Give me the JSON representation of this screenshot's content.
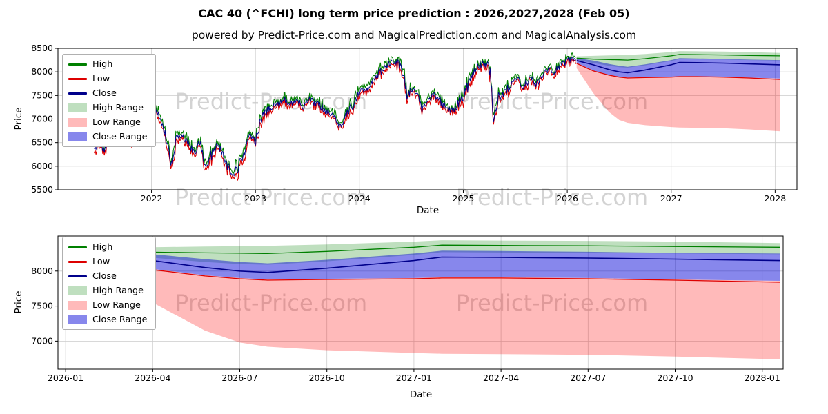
{
  "title": "CAC 40 (^FCHI) long term price prediction : 2026,2027,2028 (Feb 05)",
  "subtitle": "powered by Predict-Price.com and MagicalPrediction.com and MagicalAnalysis.com",
  "watermark": {
    "text": "Predict-Price.com",
    "color": "#c9c9c9"
  },
  "colors": {
    "high_line": "#008000",
    "low_line": "#dd0000",
    "close_line": "#00008b",
    "high_range_fill": "rgba(0,128,0,0.25)",
    "low_range_fill": "rgba(255,0,0,0.27)",
    "close_range_fill": "rgba(0,0,215,0.47)",
    "grid": "#cccccc",
    "spine": "#000000",
    "text": "#000000"
  },
  "legend": {
    "position": "upper left",
    "items": [
      {
        "id": "high",
        "label": "High",
        "type": "line",
        "color": "#008000"
      },
      {
        "id": "low",
        "label": "Low",
        "type": "line",
        "color": "#dd0000"
      },
      {
        "id": "close",
        "label": "Close",
        "type": "line",
        "color": "#00008b"
      },
      {
        "id": "high-range",
        "label": "High Range",
        "type": "patch",
        "color": "rgba(0,128,0,0.25)"
      },
      {
        "id": "low-range",
        "label": "Low Range",
        "type": "patch",
        "color": "rgba(255,0,0,0.27)"
      },
      {
        "id": "close-range",
        "label": "Close Range",
        "type": "patch",
        "color": "rgba(0,0,215,0.47)"
      }
    ]
  },
  "chart_data": [
    {
      "type": "line",
      "name": "historical-prices-with-prediction",
      "xlabel": "Date",
      "ylabel": "Price",
      "grid": true,
      "xlim": [
        2021.1,
        2028.21
      ],
      "ylim": [
        5500,
        8500
      ],
      "yticks": [
        5500,
        6000,
        6500,
        7000,
        7500,
        8000,
        8500
      ],
      "xticks": [
        2022,
        2023,
        2024,
        2025,
        2026,
        2027,
        2028
      ],
      "xtick_labels": [
        "2022",
        "2023",
        "2024",
        "2025",
        "2026",
        "2027",
        "2028"
      ],
      "legend": [
        "High",
        "Low",
        "Close",
        "High Range",
        "Low Range",
        "Close Range"
      ],
      "historical": {
        "x": [
          2021.45,
          2021.5,
          2021.54,
          2021.6,
          2021.67,
          2021.72,
          2021.78,
          2021.85,
          2021.92,
          2022.0,
          2022.04,
          2022.1,
          2022.16,
          2022.19,
          2022.24,
          2022.3,
          2022.36,
          2022.42,
          2022.46,
          2022.52,
          2022.58,
          2022.63,
          2022.68,
          2022.73,
          2022.78,
          2022.82,
          2022.88,
          2022.94,
          2023.0,
          2023.05,
          2023.12,
          2023.2,
          2023.28,
          2023.32,
          2023.4,
          2023.46,
          2023.52,
          2023.6,
          2023.68,
          2023.75,
          2023.8,
          2023.86,
          2023.93,
          2024.0,
          2024.07,
          2024.15,
          2024.23,
          2024.3,
          2024.36,
          2024.42,
          2024.46,
          2024.52,
          2024.58,
          2024.6,
          2024.65,
          2024.72,
          2024.78,
          2024.84,
          2024.9,
          2024.96,
          2025.0,
          2025.06,
          2025.12,
          2025.18,
          2025.24,
          2025.26,
          2025.29,
          2025.33,
          2025.4,
          2025.47,
          2025.53,
          2025.58,
          2025.64,
          2025.7,
          2025.76,
          2025.82,
          2025.87,
          2025.93,
          2026.0,
          2026.09
        ],
        "close": [
          6350,
          6520,
          6330,
          6620,
          6680,
          6550,
          6750,
          6500,
          6850,
          7150,
          7220,
          6950,
          6400,
          6050,
          6580,
          6620,
          6450,
          6280,
          6540,
          6000,
          6250,
          6500,
          6280,
          6000,
          5750,
          5900,
          6250,
          6650,
          6550,
          6980,
          7180,
          7300,
          7430,
          7280,
          7420,
          7250,
          7420,
          7320,
          7180,
          7020,
          6870,
          7000,
          7280,
          7570,
          7640,
          7900,
          8080,
          8180,
          8200,
          7980,
          7500,
          7650,
          7480,
          7180,
          7420,
          7520,
          7380,
          7230,
          7180,
          7350,
          7450,
          7800,
          8030,
          8180,
          8090,
          8000,
          7000,
          7420,
          7600,
          7720,
          7850,
          7680,
          7880,
          7720,
          7950,
          8060,
          7960,
          8120,
          8230,
          8290
        ],
        "noise": {
          "seed": 42,
          "step": 0.008,
          "base": 130,
          "slope_gain": 0.6,
          "max_extra": 150,
          "hl_offset": 12,
          "hl_gain": 0.5
        }
      },
      "prediction": {
        "x": [
          2026.09,
          2026.25,
          2026.4,
          2026.5,
          2026.58,
          2026.75,
          2027.0,
          2027.08,
          2027.25,
          2027.5,
          2027.75,
          2028.05
        ],
        "close": [
          8240,
          8150,
          8050,
          8000,
          7980,
          8040,
          8150,
          8200,
          8195,
          8185,
          8170,
          8150
        ],
        "high": [
          8290,
          8270,
          8260,
          8255,
          8250,
          8280,
          8340,
          8370,
          8365,
          8360,
          8350,
          8340
        ],
        "low": [
          8180,
          8020,
          7930,
          7890,
          7870,
          7880,
          7890,
          7900,
          7900,
          7890,
          7870,
          7840
        ],
        "high_range_top": [
          8330,
          8340,
          8350,
          8355,
          8360,
          8380,
          8420,
          8440,
          8435,
          8430,
          8420,
          8400
        ],
        "high_range_bottom": [
          8250,
          8190,
          8130,
          8100,
          8090,
          8140,
          8230,
          8270,
          8265,
          8260,
          8250,
          8240
        ],
        "close_range_top": [
          8290,
          8240,
          8170,
          8130,
          8110,
          8160,
          8250,
          8290,
          8285,
          8275,
          8260,
          8250
        ],
        "close_range_bottom": [
          8190,
          8030,
          7940,
          7900,
          7880,
          7890,
          7900,
          7910,
          7910,
          7900,
          7880,
          7860
        ],
        "low_range_top": [
          8190,
          8030,
          7940,
          7900,
          7880,
          7890,
          7900,
          7910,
          7910,
          7900,
          7880,
          7860
        ],
        "low_range_bottom": [
          8080,
          7550,
          7150,
          6980,
          6920,
          6870,
          6830,
          6820,
          6815,
          6805,
          6780,
          6740
        ]
      }
    },
    {
      "type": "area",
      "name": "prediction-zoom-2026-2028",
      "xlabel": "Date",
      "ylabel": "Price",
      "grid": true,
      "xlim": [
        2025.978,
        2028.06
      ],
      "ylim": [
        6600,
        8500
      ],
      "yticks": [
        7000,
        7500,
        8000
      ],
      "xticks": [
        2026.0,
        2026.25,
        2026.5,
        2026.75,
        2027.0,
        2027.25,
        2027.5,
        2027.75,
        2028.0
      ],
      "xtick_labels": [
        "2026-01",
        "2026-04",
        "2026-07",
        "2026-10",
        "2027-01",
        "2027-04",
        "2027-07",
        "2027-10",
        "2028-01"
      ],
      "legend": [
        "High",
        "Low",
        "Close",
        "High Range",
        "Low Range",
        "Close Range"
      ],
      "uses_prediction_from_chart": 0
    }
  ]
}
